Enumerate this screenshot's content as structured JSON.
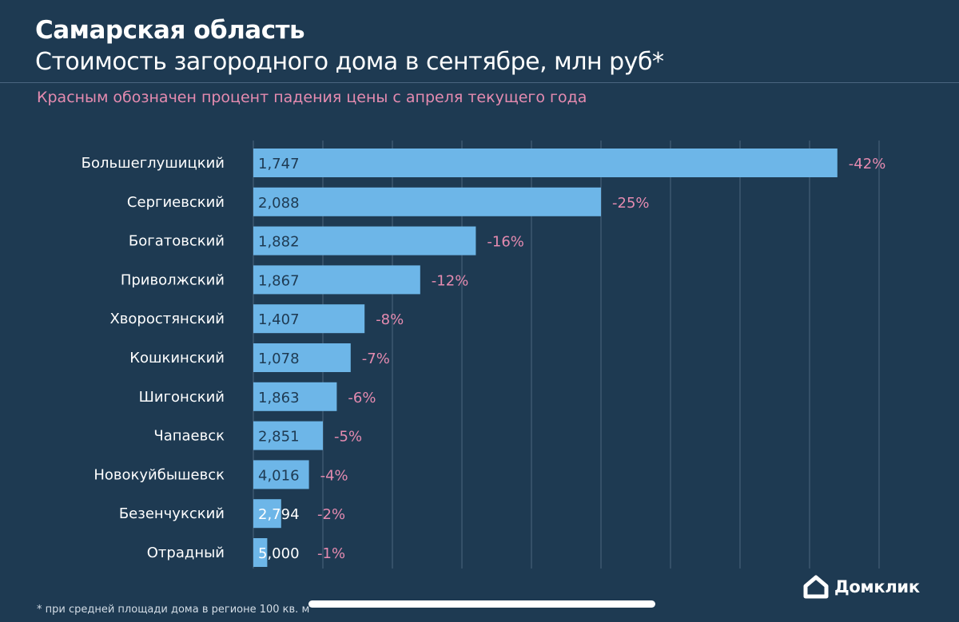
{
  "header": {
    "title": "Самарская область",
    "subtitle": "Стоимость загородного дома в сентябре, млн руб*",
    "note": "Красным обозначен процент падения цены с апреля текущего года"
  },
  "footnote": "* при средней площади дома в регионе 100 кв. м",
  "logo": {
    "text": "Домклик"
  },
  "colors": {
    "background": "#1e3a52",
    "bar": "#6db6e8",
    "decline_label": "#e58bb0",
    "gridline": "#3d5870"
  },
  "chart_data": {
    "type": "bar",
    "orientation": "horizontal",
    "grid": true,
    "categories": [
      "Большеглушицкий",
      "Сергиевский",
      "Богатовский",
      "Приволжский",
      "Хворостянский",
      "Кошкинский",
      "Шигонский",
      "Чапаевск",
      "Новокуйбышевск",
      "Безенчукский",
      "Отрадный"
    ],
    "price_labels": [
      "1,747",
      "2,088",
      "1,882",
      "1,867",
      "1,407",
      "1,078",
      "1,863",
      "2,851",
      "4,016",
      "2,794",
      "5,000"
    ],
    "decline_percent": [
      42,
      25,
      16,
      12,
      8,
      7,
      6,
      5,
      4,
      2,
      1
    ],
    "decline_labels": [
      "-42%",
      "-25%",
      "-16%",
      "-12%",
      "-8%",
      "-7%",
      "-6%",
      "-5%",
      "-4%",
      "-2%",
      "-1%"
    ],
    "xlim": [
      0,
      45
    ]
  }
}
